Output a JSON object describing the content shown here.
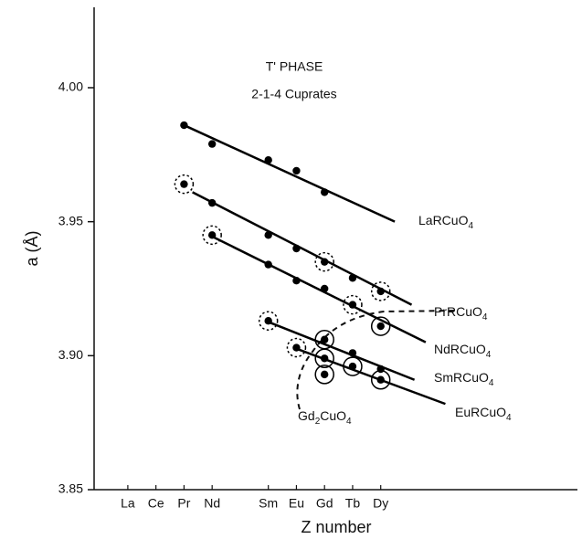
{
  "chart_data": {
    "type": "scatter",
    "annotations": [
      "T' PHASE",
      "2-1-4 Cuprates"
    ],
    "x_label": "Z number",
    "y_label": "a (Å)",
    "xlim": [
      55.8,
      73
    ],
    "ylim": [
      3.85,
      4.03
    ],
    "xticks": [
      {
        "value": 57,
        "label": "La"
      },
      {
        "value": 58,
        "label": "Ce"
      },
      {
        "value": 59,
        "label": "Pr"
      },
      {
        "value": 60,
        "label": "Nd"
      },
      {
        "value": 62,
        "label": "Sm"
      },
      {
        "value": 63,
        "label": "Eu"
      },
      {
        "value": 64,
        "label": "Gd"
      },
      {
        "value": 65,
        "label": "Tb"
      },
      {
        "value": 66,
        "label": "Dy"
      }
    ],
    "yticks": [
      3.85,
      {
        "value": 3.9,
        "label": "3.90"
      },
      3.95,
      {
        "value": 4,
        "label": "4.00"
      }
    ],
    "series": [
      {
        "name": "LaRCuO4",
        "color": "#000000",
        "x": [
          59,
          60,
          62,
          63,
          64
        ],
        "values": [
          3.986,
          3.979,
          3.973,
          3.969,
          3.961
        ],
        "circled": [
          null,
          null,
          null,
          null,
          null
        ],
        "fit_x": [
          59,
          66.5
        ],
        "fit_y": [
          3.986,
          3.95
        ]
      },
      {
        "name": "PrRCuO4",
        "color": "#000000",
        "x": [
          59,
          60,
          62,
          63,
          64,
          65,
          66
        ],
        "values": [
          3.964,
          3.957,
          3.945,
          3.94,
          3.935,
          3.929,
          3.924
        ],
        "circled": [
          "dashed",
          null,
          null,
          null,
          "dashed",
          null,
          "dashed"
        ],
        "fit_x": [
          59.3,
          67.1
        ],
        "fit_y": [
          3.961,
          3.919
        ]
      },
      {
        "name": "NdRCuO4",
        "color": "#000000",
        "x": [
          60,
          62,
          63,
          64,
          65,
          66
        ],
        "values": [
          3.945,
          3.934,
          3.928,
          3.925,
          3.919,
          3.911
        ],
        "circled": [
          "dashed",
          null,
          null,
          null,
          "dashed",
          "solid"
        ],
        "fit_x": [
          59.9,
          67.6
        ],
        "fit_y": [
          3.945,
          3.905
        ]
      },
      {
        "name": "SmRCuO4",
        "color": "#000000",
        "x": [
          62,
          64,
          65,
          66
        ],
        "values": [
          3.913,
          3.906,
          3.901,
          3.895
        ],
        "circled": [
          "dashed",
          "solid",
          null,
          null
        ],
        "fit_x": [
          61.9,
          67.2
        ],
        "fit_y": [
          3.913,
          3.891
        ]
      },
      {
        "name": "EuRCuO4",
        "color": "#000000",
        "x": [
          63,
          64,
          65,
          66
        ],
        "values": [
          3.903,
          3.899,
          3.896,
          3.891
        ],
        "circled": [
          "dashed",
          "solid",
          "solid",
          "solid"
        ],
        "fit_x": [
          62.9,
          68.3
        ],
        "fit_y": [
          3.903,
          3.882
        ]
      },
      {
        "name": "Gd2CuO4",
        "color": "#000000",
        "x": [
          64
        ],
        "values": [
          3.893
        ],
        "circled": [
          "solid"
        ]
      }
    ]
  }
}
